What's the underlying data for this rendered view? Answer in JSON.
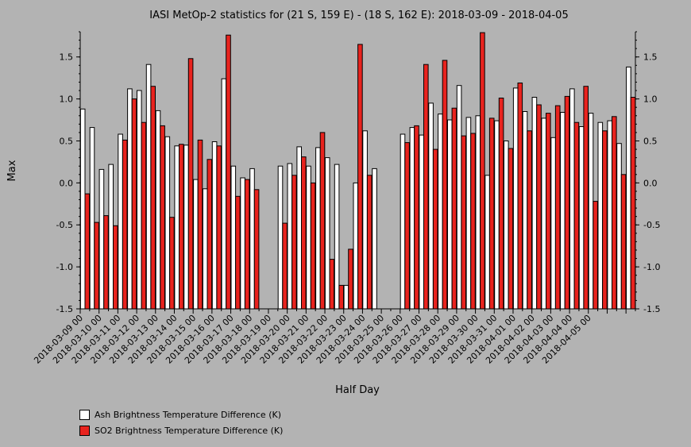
{
  "chart_data": {
    "type": "bar",
    "title": "IASI MetOp-2 statistics for (21 S, 159 E) - (18 S, 162 E): 2018-03-09 - 2018-04-05",
    "xlabel": "Half Day",
    "ylabel": "Max",
    "ylim": [
      -1.5,
      1.8
    ],
    "yticks": [
      -1.5,
      -1.0,
      -0.5,
      0.0,
      0.5,
      1.0,
      1.5
    ],
    "ytick_labels": [
      "-1.5",
      "-1.0",
      "-0.5",
      "0.0",
      "0.5",
      "1.0",
      "1.5"
    ],
    "tick_labels": [
      "2018-03-09 00",
      "2018-03-10 00",
      "2018-03-11 00",
      "2018-03-12 00",
      "2018-03-13 00",
      "2018-03-14 00",
      "2018-03-15 00",
      "2018-03-16 00",
      "2018-03-17 00",
      "2018-03-18 00",
      "2018-03-19 00",
      "2018-03-20 00",
      "2018-03-21 00",
      "2018-03-22 00",
      "2018-03-23 00",
      "2018-03-24 00",
      "2018-03-25 00",
      "2018-03-26 00",
      "2018-03-27 00",
      "2018-03-28 00",
      "2018-03-29 00",
      "2018-03-30 00",
      "2018-03-31 00",
      "2018-04-01 00",
      "2018-04-02 00",
      "2018-04-03 00",
      "2018-04-04 00",
      "2018-04-05 00"
    ],
    "legend_position": "bottom-left",
    "series": [
      {
        "name": "Ash Brightness Temperature Difference (K)",
        "color": "#ffffff",
        "values": [
          0.88,
          0.66,
          0.16,
          0.22,
          0.58,
          1.12,
          1.1,
          1.41,
          0.86,
          0.55,
          0.44,
          0.45,
          0.04,
          -0.07,
          0.49,
          1.24,
          0.2,
          0.06,
          0.17,
          null,
          null,
          0.2,
          0.23,
          0.43,
          0.2,
          0.42,
          0.3,
          0.22,
          -1.22,
          0.0,
          0.62,
          0.17,
          null,
          null,
          0.58,
          0.66,
          0.57,
          0.95,
          0.82,
          0.75,
          1.16,
          0.78,
          0.8,
          0.09,
          0.74,
          0.5,
          1.13,
          0.85,
          1.02,
          0.77,
          0.54,
          0.84,
          1.12,
          0.67,
          0.83,
          0.72,
          0.74,
          0.47,
          1.38
        ]
      },
      {
        "name": "SO2 Brightness Temperature Difference (K)",
        "color": "#e8231e",
        "values": [
          -0.13,
          -0.47,
          -0.39,
          -0.51,
          0.51,
          1.0,
          0.72,
          1.15,
          0.68,
          -0.41,
          0.46,
          1.48,
          0.51,
          0.28,
          0.44,
          1.76,
          -0.16,
          0.04,
          -0.08,
          null,
          null,
          -0.48,
          0.09,
          0.31,
          0.0,
          0.6,
          -0.91,
          -1.22,
          -0.79,
          1.65,
          0.09,
          null,
          null,
          null,
          0.48,
          0.68,
          1.41,
          0.4,
          1.46,
          0.89,
          0.56,
          0.59,
          1.79,
          0.77,
          1.01,
          0.41,
          1.19,
          0.62,
          0.93,
          0.83,
          0.92,
          1.03,
          0.72,
          1.15,
          -0.22,
          0.62,
          0.79,
          0.1,
          1.02
        ]
      }
    ]
  }
}
